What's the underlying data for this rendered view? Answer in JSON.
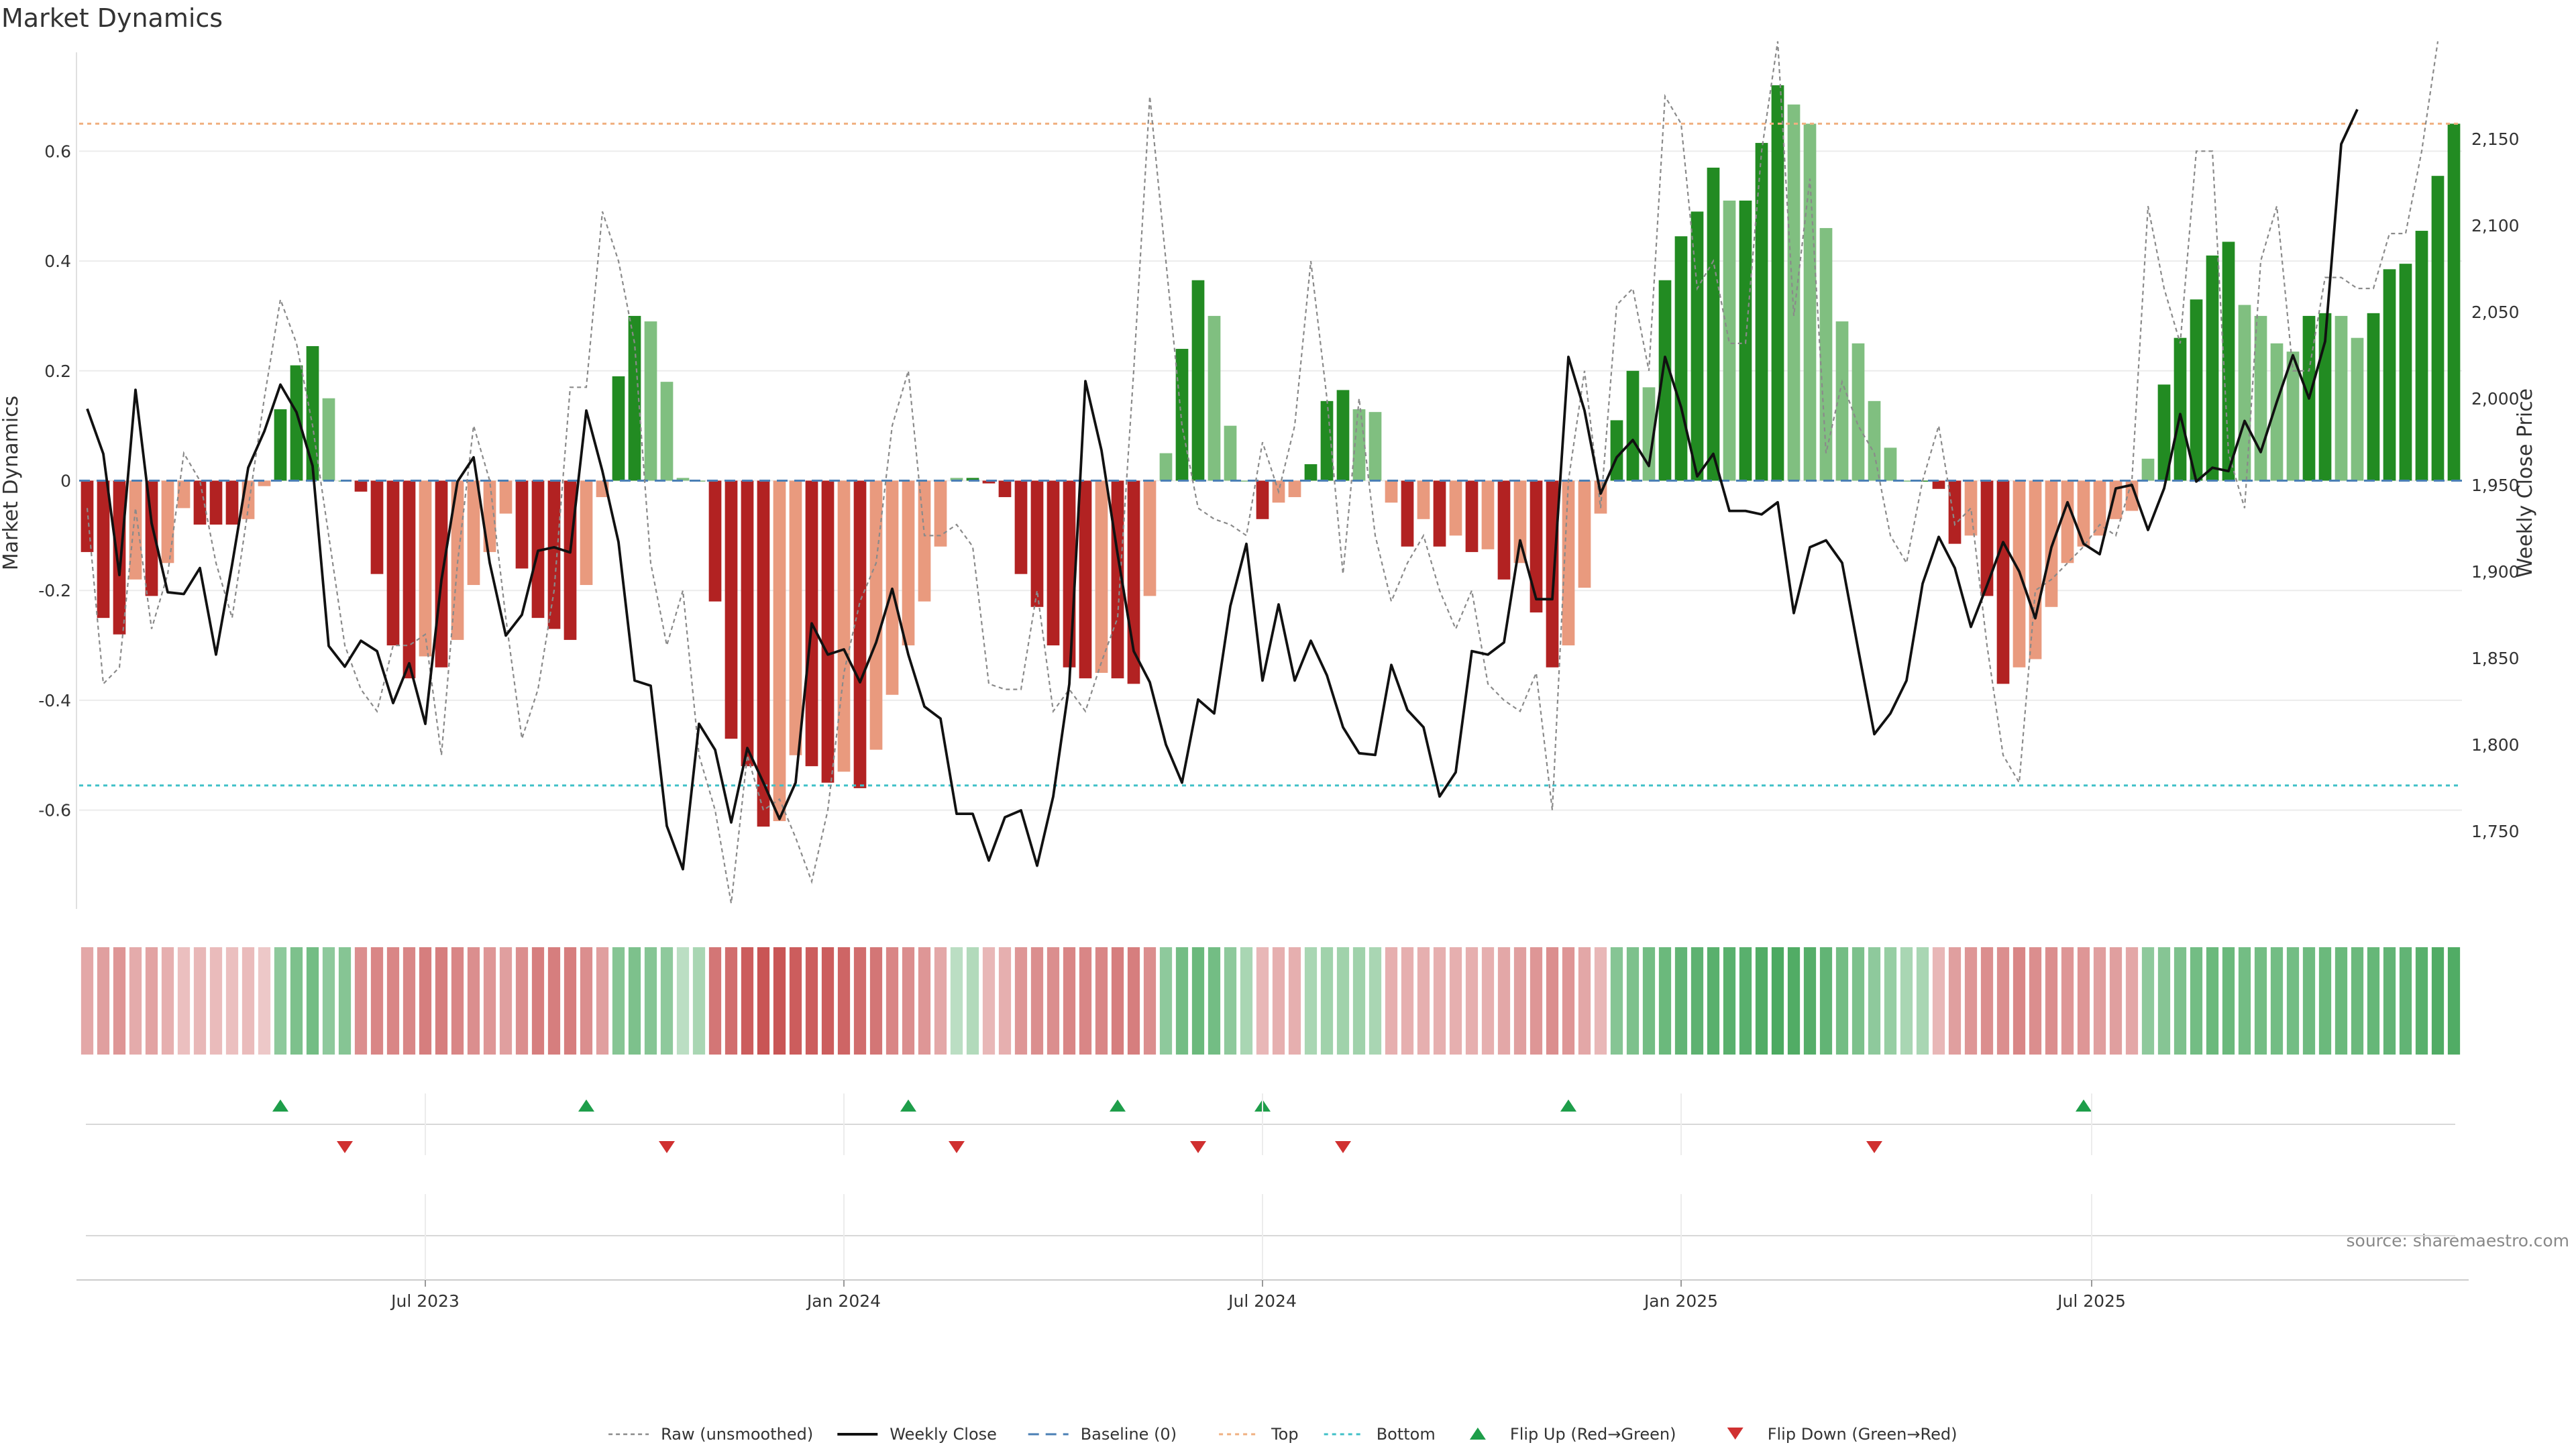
{
  "chart_data": {
    "type": "bar",
    "title": "Market Dynamics",
    "ylabel_left": "Market Dynamics",
    "ylabel_right": "Weekly Close Price",
    "source": "source: sharemaestro.com",
    "ylim_left": [
      -0.78,
      0.78
    ],
    "ylim_right": [
      1705,
      2200
    ],
    "left_ticks": [
      {
        "v": 0.6,
        "label": "0.6"
      },
      {
        "v": 0.4,
        "label": "0.4"
      },
      {
        "v": 0.2,
        "label": "0.2"
      },
      {
        "v": 0,
        "label": "0"
      },
      {
        "v": -0.2,
        "label": "-0.2"
      },
      {
        "v": -0.4,
        "label": "-0.4"
      },
      {
        "v": -0.6,
        "label": "-0.6"
      }
    ],
    "right_ticks": [
      {
        "v": 2150,
        "label": "2,150"
      },
      {
        "v": 2100,
        "label": "2,100"
      },
      {
        "v": 2050,
        "label": "2,050"
      },
      {
        "v": 2000,
        "label": "2,000"
      },
      {
        "v": 1950,
        "label": "1,950"
      },
      {
        "v": 1900,
        "label": "1,900"
      },
      {
        "v": 1850,
        "label": "1,850"
      },
      {
        "v": 1800,
        "label": "1,800"
      },
      {
        "v": 1750,
        "label": "1,750"
      }
    ],
    "x_ticks": [
      {
        "week": 21.5,
        "label": "Jul 2023"
      },
      {
        "week": 47.5,
        "label": "Jan 2024"
      },
      {
        "week": 73.5,
        "label": "Jul 2024"
      },
      {
        "week": 99.5,
        "label": "Jan 2025"
      },
      {
        "week": 125,
        "label": "Jul 2025"
      }
    ],
    "top_threshold": 0.65,
    "bottom_threshold": -0.555,
    "dynamics": [
      -0.13,
      -0.25,
      -0.28,
      -0.18,
      -0.21,
      -0.15,
      -0.05,
      -0.08,
      -0.08,
      -0.08,
      -0.07,
      -0.01,
      0.13,
      0.21,
      0.245,
      0.15,
      0.0,
      -0.02,
      -0.17,
      -0.3,
      -0.36,
      -0.32,
      -0.34,
      -0.29,
      -0.19,
      -0.13,
      -0.06,
      -0.16,
      -0.25,
      -0.27,
      -0.29,
      -0.19,
      -0.03,
      0.19,
      0.3,
      0.29,
      0.18,
      0.005,
      0.0,
      -0.22,
      -0.47,
      -0.52,
      -0.63,
      -0.62,
      -0.5,
      -0.52,
      -0.55,
      -0.53,
      -0.56,
      -0.49,
      -0.39,
      -0.3,
      -0.22,
      -0.12,
      0.005,
      0.005,
      -0.005,
      -0.03,
      -0.17,
      -0.23,
      -0.3,
      -0.34,
      -0.36,
      -0.35,
      -0.36,
      -0.37,
      -0.21,
      0.05,
      0.24,
      0.365,
      0.3,
      0.1,
      0.0,
      -0.07,
      -0.04,
      -0.03,
      0.03,
      0.145,
      0.165,
      0.13,
      0.125,
      -0.04,
      -0.12,
      -0.07,
      -0.12,
      -0.1,
      -0.13,
      -0.125,
      -0.18,
      -0.15,
      -0.24,
      -0.34,
      -0.3,
      -0.195,
      -0.06,
      0.11,
      0.2,
      0.17,
      0.365,
      0.445,
      0.49,
      0.57,
      0.51,
      0.51,
      0.615,
      0.72,
      0.685,
      0.65,
      0.46,
      0.29,
      0.25,
      0.145,
      0.06,
      0.0,
      0.0,
      -0.015,
      -0.115,
      -0.1,
      -0.21,
      -0.37,
      -0.34,
      -0.325,
      -0.23,
      -0.15,
      -0.12,
      -0.1,
      -0.07,
      -0.055,
      0.04,
      0.175,
      0.26,
      0.33,
      0.41,
      0.435,
      0.32,
      0.3,
      0.25,
      0.235,
      0.3,
      0.305,
      0.3,
      0.26,
      0.305,
      0.385,
      0.395,
      0.455,
      0.555,
      0.65
    ],
    "raw": [
      -0.05,
      -0.37,
      -0.34,
      -0.05,
      -0.27,
      -0.17,
      0.05,
      0.0,
      -0.15,
      -0.25,
      -0.05,
      0.15,
      0.33,
      0.25,
      0.1,
      -0.1,
      -0.3,
      -0.38,
      -0.42,
      -0.3,
      -0.3,
      -0.28,
      -0.5,
      -0.15,
      0.1,
      0.0,
      -0.25,
      -0.47,
      -0.38,
      -0.2,
      0.17,
      0.17,
      0.49,
      0.4,
      0.25,
      -0.15,
      -0.3,
      -0.2,
      -0.5,
      -0.6,
      -0.77,
      -0.5,
      -0.6,
      -0.58,
      -0.65,
      -0.73,
      -0.6,
      -0.35,
      -0.22,
      -0.15,
      0.1,
      0.2,
      -0.1,
      -0.1,
      -0.08,
      -0.12,
      -0.37,
      -0.38,
      -0.38,
      -0.2,
      -0.42,
      -0.38,
      -0.42,
      -0.33,
      -0.25,
      0.2,
      0.7,
      0.4,
      0.1,
      -0.05,
      -0.07,
      -0.08,
      -0.1,
      0.07,
      -0.02,
      0.1,
      0.4,
      0.15,
      -0.17,
      0.15,
      -0.1,
      -0.22,
      -0.15,
      -0.1,
      -0.2,
      -0.27,
      -0.2,
      -0.37,
      -0.4,
      -0.42,
      -0.35,
      -0.6,
      0.0,
      0.2,
      -0.05,
      0.32,
      0.35,
      0.2,
      0.7,
      0.65,
      0.35,
      0.4,
      0.25,
      0.25,
      0.6,
      0.8,
      0.3,
      0.55,
      0.05,
      0.18,
      0.1,
      0.05,
      -0.1,
      -0.15,
      0.0,
      0.1,
      -0.08,
      -0.05,
      -0.3,
      -0.5,
      -0.55,
      -0.2,
      -0.18,
      -0.15,
      -0.12,
      -0.08,
      -0.1,
      0.0,
      0.5,
      0.35,
      0.25,
      0.6,
      0.6,
      0.05,
      -0.05,
      0.4,
      0.5,
      0.2,
      0.2,
      0.37,
      0.37,
      0.35,
      0.35,
      0.45,
      0.45,
      0.6,
      0.8
    ],
    "close": [
      1994,
      1968,
      1898,
      2005,
      1928,
      1888,
      1887,
      1902,
      1852,
      1904,
      1960,
      1981,
      2008,
      1992,
      1961,
      1857,
      1845,
      1860,
      1854,
      1824,
      1847,
      1812,
      1895,
      1952,
      1966,
      1905,
      1863,
      1875,
      1912,
      1914,
      1911,
      1993,
      1958,
      1917,
      1837,
      1834,
      1753,
      1728,
      1812,
      1797,
      1755,
      1798,
      1778,
      1757,
      1778,
      1870,
      1852,
      1855,
      1836,
      1859,
      1890,
      1852,
      1822,
      1815,
      1760,
      1760,
      1733,
      1758,
      1762,
      1730,
      1770,
      1835,
      2010,
      1970,
      1910,
      1854,
      1836,
      1800,
      1778,
      1826,
      1818,
      1880,
      1916,
      1837,
      1881,
      1837,
      1860,
      1840,
      1810,
      1795,
      1794,
      1846,
      1820,
      1810,
      1770,
      1784,
      1854,
      1852,
      1859,
      1918,
      1884,
      1884,
      2024,
      1993,
      1945,
      1966,
      1976,
      1961,
      2024,
      1995,
      1955,
      1968,
      1935,
      1935,
      1933,
      1940,
      1876,
      1914,
      1918,
      1905,
      1855,
      1806,
      1818,
      1837,
      1893,
      1920,
      1902,
      1868,
      1892,
      1917,
      1900,
      1873,
      1914,
      1940,
      1916,
      1910,
      1948,
      1950,
      1924,
      1948,
      1991,
      1952,
      1960,
      1958,
      1987,
      1969,
      1998,
      2025,
      2000,
      2033,
      2147,
      2167
    ],
    "heat_strength": [
      0.35,
      0.4,
      0.45,
      0.32,
      0.38,
      0.3,
      0.2,
      0.25,
      0.22,
      0.2,
      0.22,
      0.15,
      0.45,
      0.55,
      0.6,
      0.45,
      0.5,
      0.5,
      0.55,
      0.55,
      0.55,
      0.6,
      0.6,
      0.55,
      0.5,
      0.45,
      0.4,
      0.5,
      0.6,
      0.6,
      0.6,
      0.5,
      0.4,
      0.5,
      0.55,
      0.5,
      0.45,
      0.2,
      0.3,
      0.65,
      0.7,
      0.8,
      0.85,
      0.85,
      0.8,
      0.8,
      0.8,
      0.75,
      0.7,
      0.65,
      0.55,
      0.5,
      0.45,
      0.35,
      0.2,
      0.25,
      0.25,
      0.3,
      0.45,
      0.5,
      0.5,
      0.55,
      0.55,
      0.55,
      0.6,
      0.6,
      0.5,
      0.45,
      0.6,
      0.65,
      0.6,
      0.45,
      0.3,
      0.25,
      0.3,
      0.3,
      0.3,
      0.35,
      0.35,
      0.35,
      0.3,
      0.3,
      0.3,
      0.3,
      0.3,
      0.3,
      0.3,
      0.3,
      0.35,
      0.4,
      0.45,
      0.5,
      0.45,
      0.35,
      0.25,
      0.5,
      0.55,
      0.6,
      0.65,
      0.7,
      0.72,
      0.75,
      0.75,
      0.75,
      0.8,
      0.82,
      0.8,
      0.78,
      0.7,
      0.6,
      0.55,
      0.45,
      0.4,
      0.3,
      0.3,
      0.25,
      0.4,
      0.45,
      0.5,
      0.5,
      0.55,
      0.5,
      0.5,
      0.45,
      0.45,
      0.4,
      0.4,
      0.35,
      0.45,
      0.5,
      0.55,
      0.6,
      0.65,
      0.65,
      0.6,
      0.6,
      0.6,
      0.6,
      0.62,
      0.65,
      0.65,
      0.65,
      0.68,
      0.7,
      0.7,
      0.75,
      0.8,
      0.8
    ],
    "flip_up_weeks": [
      12,
      31,
      51,
      64,
      73,
      92,
      124
    ],
    "flip_down_weeks": [
      16,
      36,
      54,
      69,
      78,
      111
    ],
    "legend": [
      {
        "key": "raw",
        "label": "Raw (unsmoothed)"
      },
      {
        "key": "close",
        "label": "Weekly Close"
      },
      {
        "key": "baseline",
        "label": "Baseline (0)"
      },
      {
        "key": "top",
        "label": "Top"
      },
      {
        "key": "bottom",
        "label": "Bottom"
      },
      {
        "key": "flipup",
        "label": "Flip Up (Red→Green)"
      },
      {
        "key": "flipdown",
        "label": "Flip Down (Green→Red)"
      }
    ],
    "colors": {
      "green_strong": "#228b22",
      "green_light": "#80bf80",
      "red_strong": "#b22222",
      "red_light": "#e99a7e",
      "close_line": "#111111",
      "raw_line": "#8a8a8a",
      "baseline": "#4a7fb5",
      "top": "#f0b080",
      "bottom": "#40c0c8",
      "flip_up": "#1e9e4a",
      "flip_down": "#d03030",
      "grid": "#ececec"
    }
  }
}
